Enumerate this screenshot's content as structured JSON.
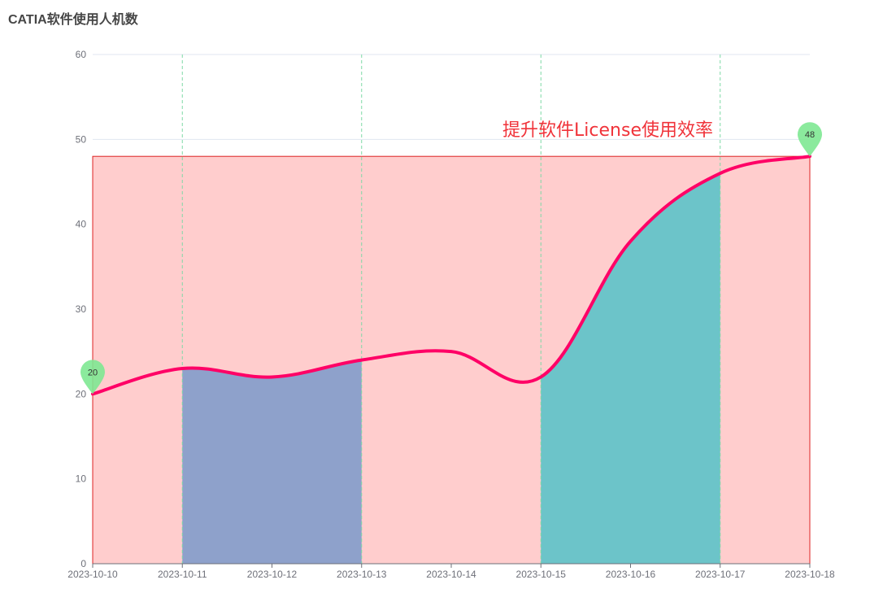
{
  "chart_data": {
    "type": "line",
    "title": "CATIA软件使用人机数",
    "x": [
      "2023-10-10",
      "2023-10-11",
      "2023-10-12",
      "2023-10-13",
      "2023-10-14",
      "2023-10-15",
      "2023-10-16",
      "2023-10-17",
      "2023-10-18"
    ],
    "values": [
      20,
      23,
      22,
      24,
      25,
      22,
      38,
      46,
      48
    ],
    "ylim": [
      0,
      60
    ],
    "yticks": [
      0,
      10,
      20,
      30,
      40,
      50,
      60
    ],
    "mark_points": [
      {
        "x": "2023-10-10",
        "value": 20,
        "label": "20"
      },
      {
        "x": "2023-10-18",
        "value": 48,
        "label": "48"
      }
    ],
    "mark_area": {
      "x_from": "2023-10-10",
      "x_to": "2023-10-18",
      "y_from": 0,
      "y_to": 48,
      "label": "提升软件License使用效率",
      "color": "#ffcdcd",
      "border_color": "#dd2222"
    },
    "shaded_ranges": [
      {
        "x_from": "2023-10-11",
        "x_to": "2023-10-13",
        "color": "#8ea1cb"
      },
      {
        "x_from": "2023-10-15",
        "x_to": "2023-10-17",
        "color": "#6cc4c9"
      }
    ],
    "colors": {
      "line": "#ff0066",
      "pin": "#7ee892",
      "grid": "#e0e6f1",
      "guide": "#7fd9a6",
      "axis": "#6e7079"
    }
  }
}
